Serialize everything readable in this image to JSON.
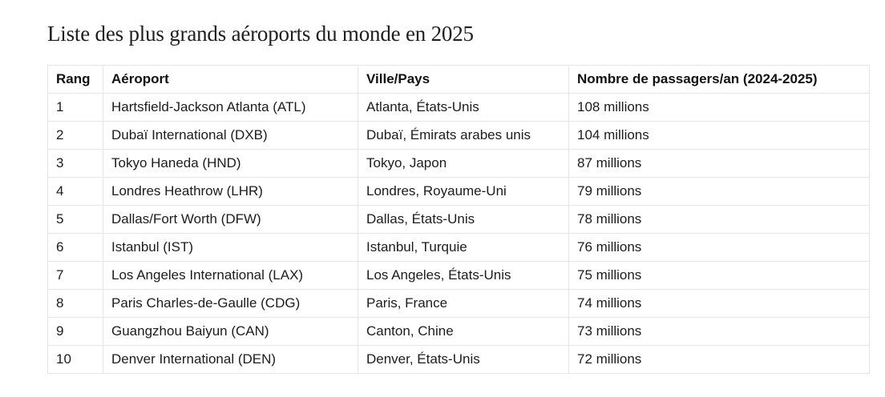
{
  "title": "Liste des plus grands aéroports du monde en 2025",
  "table": {
    "headers": {
      "rank": "Rang",
      "airport": "Aéroport",
      "city": "Ville/Pays",
      "passengers": "Nombre de passagers/an (2024-2025)"
    },
    "rows": [
      {
        "rank": "1",
        "airport": "Hartsfield-Jackson Atlanta (ATL)",
        "city": "Atlanta, États-Unis",
        "passengers": "108 millions"
      },
      {
        "rank": "2",
        "airport": "Dubaï International (DXB)",
        "city": "Dubaï, Émirats arabes unis",
        "passengers": "104 millions"
      },
      {
        "rank": "3",
        "airport": "Tokyo Haneda (HND)",
        "city": "Tokyo, Japon",
        "passengers": "87 millions"
      },
      {
        "rank": "4",
        "airport": "Londres Heathrow (LHR)",
        "city": "Londres, Royaume-Uni",
        "passengers": "79 millions"
      },
      {
        "rank": "5",
        "airport": "Dallas/Fort Worth (DFW)",
        "city": "Dallas, États-Unis",
        "passengers": "78 millions"
      },
      {
        "rank": "6",
        "airport": "Istanbul (IST)",
        "city": "Istanbul, Turquie",
        "passengers": "76 millions"
      },
      {
        "rank": "7",
        "airport": "Los Angeles International (LAX)",
        "city": "Los Angeles, États-Unis",
        "passengers": "75 millions"
      },
      {
        "rank": "8",
        "airport": "Paris Charles-de-Gaulle (CDG)",
        "city": "Paris, France",
        "passengers": "74 millions"
      },
      {
        "rank": "9",
        "airport": "Guangzhou Baiyun (CAN)",
        "city": "Canton, Chine",
        "passengers": "73 millions"
      },
      {
        "rank": "10",
        "airport": "Denver International (DEN)",
        "city": "Denver, États-Unis",
        "passengers": "72 millions"
      }
    ]
  }
}
